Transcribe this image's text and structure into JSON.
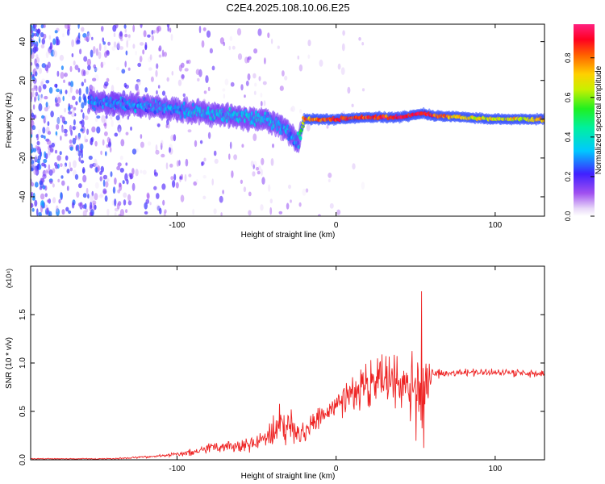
{
  "title": "C2E4.2025.108.10.06.E25",
  "colors": {
    "snr_line": "#ee2222",
    "axis": "#000000",
    "background": "#ffffff"
  },
  "chart_data": [
    {
      "type": "heatmap",
      "title": "C2E4.2025.108.10.06.E25",
      "xlabel": "Height of straight line (km)",
      "ylabel": "Frequency (Hz)",
      "xlim": [
        -192,
        131
      ],
      "ylim": [
        -50,
        49
      ],
      "x_ticks": [
        -100,
        0,
        100
      ],
      "y_ticks": [
        -40,
        -20,
        0,
        20,
        40
      ],
      "x_tick_labels": [
        "-100",
        "0",
        "100"
      ],
      "y_tick_labels": [
        "-40",
        "-20",
        "0",
        "20",
        "40"
      ],
      "grid": false,
      "colorbar": {
        "label": "Normalized spectral amplitude",
        "range": [
          0.0,
          0.97
        ],
        "ticks": [
          0.0,
          0.2,
          0.4,
          0.6,
          0.8
        ],
        "tick_labels": [
          "0.0",
          "0.2",
          "0.4",
          "0.6",
          "0.8"
        ],
        "colormap": "rainbow (white-violet-blue-cyan-green-yellow-red-magenta)"
      },
      "ridge": {
        "description": "dominant frequency band vs height",
        "x": [
          -155,
          -140,
          -120,
          -100,
          -80,
          -60,
          -45,
          -35,
          -28,
          -24,
          -20,
          0,
          20,
          40,
          55,
          60,
          80,
          100,
          131
        ],
        "y": [
          9,
          8,
          7,
          5,
          3,
          1,
          0,
          -3,
          -8,
          -12,
          0,
          0,
          1,
          1,
          3,
          2,
          1,
          0,
          0
        ],
        "amplitude": [
          0.28,
          0.3,
          0.3,
          0.32,
          0.34,
          0.35,
          0.35,
          0.33,
          0.3,
          0.28,
          0.8,
          0.88,
          0.85,
          0.9,
          0.92,
          0.9,
          0.72,
          0.7,
          0.72
        ]
      },
      "noise": {
        "description": "scattered low-amplitude speckle, dense at low heights",
        "x_range": [
          -192,
          -20
        ],
        "amplitude_range": [
          0.02,
          0.25
        ]
      }
    },
    {
      "type": "line",
      "xlabel": "Height of straight line (km)",
      "ylabel": "SNR (10 * v/v)",
      "y_multiplier": "(x10⁴)",
      "xlim": [
        -192,
        131
      ],
      "ylim": [
        0,
        2.0
      ],
      "x_ticks": [
        -100,
        0,
        100
      ],
      "y_ticks": [
        0.0,
        0.5,
        1.0,
        1.5
      ],
      "x_tick_labels": [
        "-100",
        "0",
        "100"
      ],
      "y_tick_labels": [
        "0.0",
        "0.5",
        "1.0",
        "1.5"
      ],
      "grid": false,
      "series": [
        {
          "x": [
            -192,
            -160,
            -140,
            -120,
            -110,
            -100,
            -90,
            -80,
            -70,
            -60,
            -50,
            -40,
            -35,
            -30,
            -25,
            -20,
            -10,
            0,
            10,
            20,
            30,
            40,
            45,
            50,
            55,
            60,
            70,
            80,
            90,
            100,
            110,
            120,
            131
          ],
          "y": [
            0.01,
            0.01,
            0.01,
            0.03,
            0.04,
            0.06,
            0.08,
            0.12,
            0.14,
            0.15,
            0.18,
            0.28,
            0.38,
            0.35,
            0.28,
            0.3,
            0.42,
            0.55,
            0.7,
            0.78,
            0.82,
            0.82,
            0.85,
            0.8,
            0.72,
            0.88,
            0.9,
            0.9,
            0.9,
            0.9,
            0.9,
            0.89,
            0.9
          ],
          "spread": [
            0.004,
            0.004,
            0.005,
            0.01,
            0.01,
            0.02,
            0.03,
            0.04,
            0.05,
            0.06,
            0.07,
            0.12,
            0.16,
            0.16,
            0.12,
            0.1,
            0.1,
            0.12,
            0.14,
            0.18,
            0.2,
            0.22,
            0.3,
            0.4,
            0.36,
            0.06,
            0.03,
            0.03,
            0.03,
            0.03,
            0.03,
            0.03,
            0.03
          ]
        }
      ]
    }
  ]
}
